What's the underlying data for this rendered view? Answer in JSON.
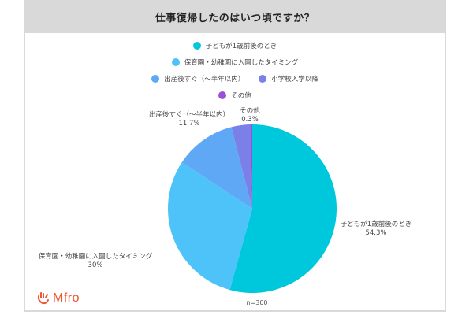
{
  "title": "仕事復帰したのはいつ頃ですか？",
  "legend": [
    {
      "label": "子どもが1歳前後のとき",
      "color": "#00c8dc"
    },
    {
      "label": "保育園・幼稚園に入園したタイミング",
      "color": "#4dc3fa"
    },
    {
      "label": "出産後すぐ（〜半年以内）",
      "color": "#5ea8f5"
    },
    {
      "label": "小学校入学以降",
      "color": "#7b7fe8"
    },
    {
      "label": "その他",
      "color": "#9b4fd4"
    }
  ],
  "slice_labels": [
    {
      "name": "子どもが1歳前後のとき",
      "value": "54.3%"
    },
    {
      "name": "保育園・幼稚園に入園したタイミング",
      "value": "30%"
    },
    {
      "name": "出産後すぐ（〜半年以内）",
      "value": "11.7%"
    },
    {
      "name": "その他",
      "value": "0.3%"
    }
  ],
  "sample_size": "n=300",
  "logo": {
    "text": "Mfro",
    "color": "#f0552f"
  },
  "chart_data": {
    "type": "pie",
    "title": "仕事復帰したのはいつ頃ですか？",
    "categories": [
      "子どもが1歳前後のとき",
      "保育園・幼稚園に入園したタイミング",
      "出産後すぐ（〜半年以内）",
      "小学校入学以降",
      "その他"
    ],
    "values": [
      54.3,
      30,
      11.7,
      3.7,
      0.3
    ],
    "colors": [
      "#00c8dc",
      "#4dc3fa",
      "#5ea8f5",
      "#7b7fe8",
      "#9b4fd4"
    ],
    "unit": "%",
    "legend_position": "top",
    "annotation": "n=300",
    "start_angle": "12 o'clock, clockwise"
  }
}
